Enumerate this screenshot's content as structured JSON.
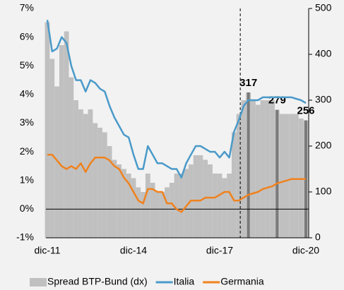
{
  "chart_data": {
    "type": "bar-line",
    "categories": [
      "dic-11",
      null,
      null,
      null,
      null,
      null,
      null,
      null,
      null,
      null,
      null,
      null,
      null,
      null,
      null,
      null,
      null,
      null,
      "dic-14",
      null,
      null,
      null,
      null,
      null,
      null,
      null,
      null,
      null,
      null,
      null,
      null,
      null,
      null,
      null,
      null,
      null,
      "dic-17",
      null,
      null,
      null,
      null,
      null,
      null,
      null,
      null,
      null,
      null,
      null,
      null,
      null,
      null,
      null,
      null,
      null,
      "dic-20"
    ],
    "series": [
      {
        "name": "Spread BTP-Bund (dx)",
        "color": "#c0c0c0",
        "highlight_color": "#7a7a7a",
        "axis": "y2",
        "kind": "bar",
        "values": [
          470,
          390,
          330,
          420,
          450,
          350,
          300,
          280,
          270,
          280,
          250,
          240,
          230,
          200,
          170,
          160,
          150,
          140,
          130,
          110,
          100,
          140,
          120,
          100,
          100,
          110,
          120,
          140,
          140,
          150,
          160,
          180,
          180,
          170,
          160,
          140,
          140,
          130,
          140,
          230,
          270,
          300,
          317,
          300,
          290,
          300,
          300,
          300,
          279,
          270,
          270,
          270,
          270,
          260,
          256
        ],
        "value_labels": [
          null,
          null,
          null,
          null,
          null,
          null,
          null,
          null,
          null,
          null,
          null,
          null,
          null,
          null,
          null,
          null,
          null,
          null,
          null,
          null,
          null,
          null,
          null,
          null,
          null,
          null,
          null,
          null,
          null,
          null,
          null,
          null,
          null,
          null,
          null,
          null,
          null,
          null,
          null,
          null,
          null,
          null,
          "317",
          null,
          null,
          null,
          null,
          null,
          "279",
          null,
          null,
          null,
          null,
          null,
          "256"
        ]
      },
      {
        "name": "Italia",
        "color": "#4a9ac9",
        "kind": "line",
        "values": [
          6.6,
          5.5,
          5.6,
          6.0,
          5.8,
          5.0,
          4.5,
          4.5,
          4.1,
          4.5,
          4.4,
          4.2,
          4.1,
          3.6,
          3.2,
          2.9,
          2.6,
          2.5,
          1.9,
          1.4,
          1.4,
          2.2,
          1.9,
          1.6,
          1.6,
          1.5,
          1.4,
          1.4,
          1.1,
          1.6,
          1.9,
          2.2,
          2.2,
          2.1,
          2.0,
          2.0,
          1.8,
          2.0,
          1.8,
          2.7,
          3.1,
          3.6,
          3.8,
          3.8,
          3.8,
          3.9,
          3.9,
          3.9,
          3.9,
          3.9,
          3.9,
          3.9,
          3.85,
          3.8,
          3.7
        ]
      },
      {
        "name": "Germania",
        "color": "#f0821e",
        "kind": "line",
        "values": [
          1.9,
          1.9,
          1.7,
          1.5,
          1.4,
          1.5,
          1.4,
          1.6,
          1.3,
          1.6,
          1.8,
          1.8,
          1.8,
          1.7,
          1.5,
          1.4,
          1.1,
          0.9,
          0.6,
          0.3,
          0.2,
          0.7,
          0.7,
          0.6,
          0.6,
          0.2,
          0.2,
          0.0,
          -0.1,
          0.1,
          0.3,
          0.3,
          0.3,
          0.4,
          0.4,
          0.4,
          0.5,
          0.6,
          0.6,
          0.3,
          0.3,
          0.4,
          0.5,
          0.55,
          0.6,
          0.7,
          0.75,
          0.8,
          0.9,
          0.95,
          1.0,
          1.05,
          1.05,
          1.05,
          1.05
        ]
      }
    ],
    "ylim": [
      -1,
      7
    ],
    "yticks": [
      {
        "value": -1,
        "label": "-1%"
      },
      {
        "value": 0,
        "label": "0%"
      },
      {
        "value": 1,
        "label": "1%"
      },
      {
        "value": 2,
        "label": "2%"
      },
      {
        "value": 3,
        "label": "3%"
      },
      {
        "value": 4,
        "label": "4%"
      },
      {
        "value": 5,
        "label": "5%"
      },
      {
        "value": 6,
        "label": "6%"
      },
      {
        "value": 7,
        "label": "7%"
      }
    ],
    "y2lim": [
      0,
      500
    ],
    "y2ticks": [
      0,
      100,
      200,
      300,
      400,
      500
    ],
    "legend": "bottom"
  }
}
